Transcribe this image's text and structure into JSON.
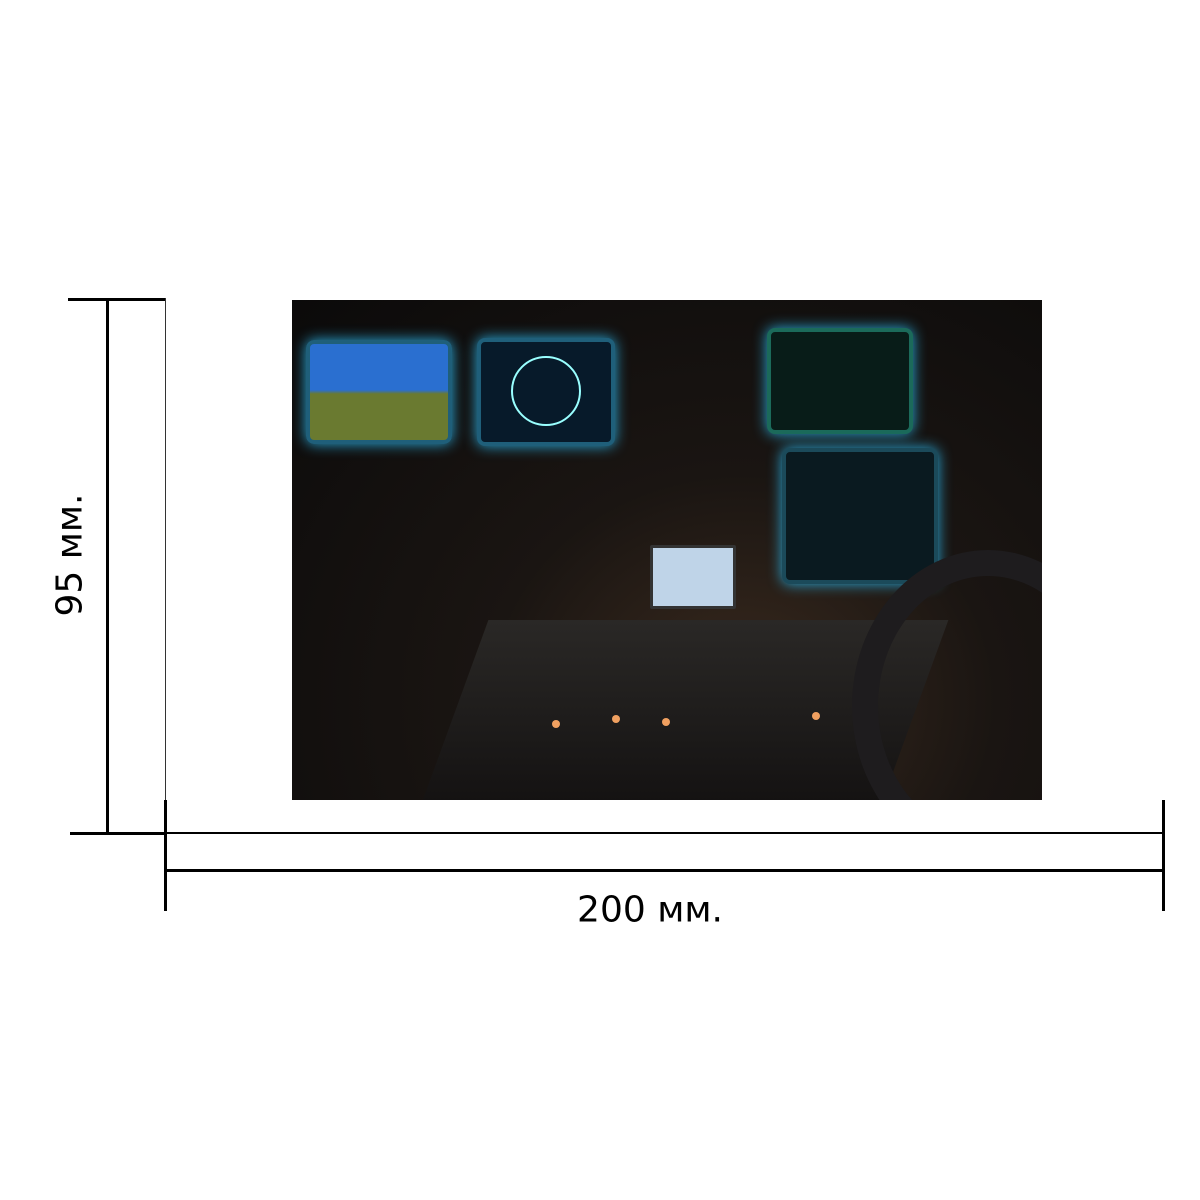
{
  "dimensions": {
    "height_label": "95 мм.",
    "width_label": "200 мм."
  },
  "photo": {
    "subject": "aircraft-cockpit-panel"
  }
}
